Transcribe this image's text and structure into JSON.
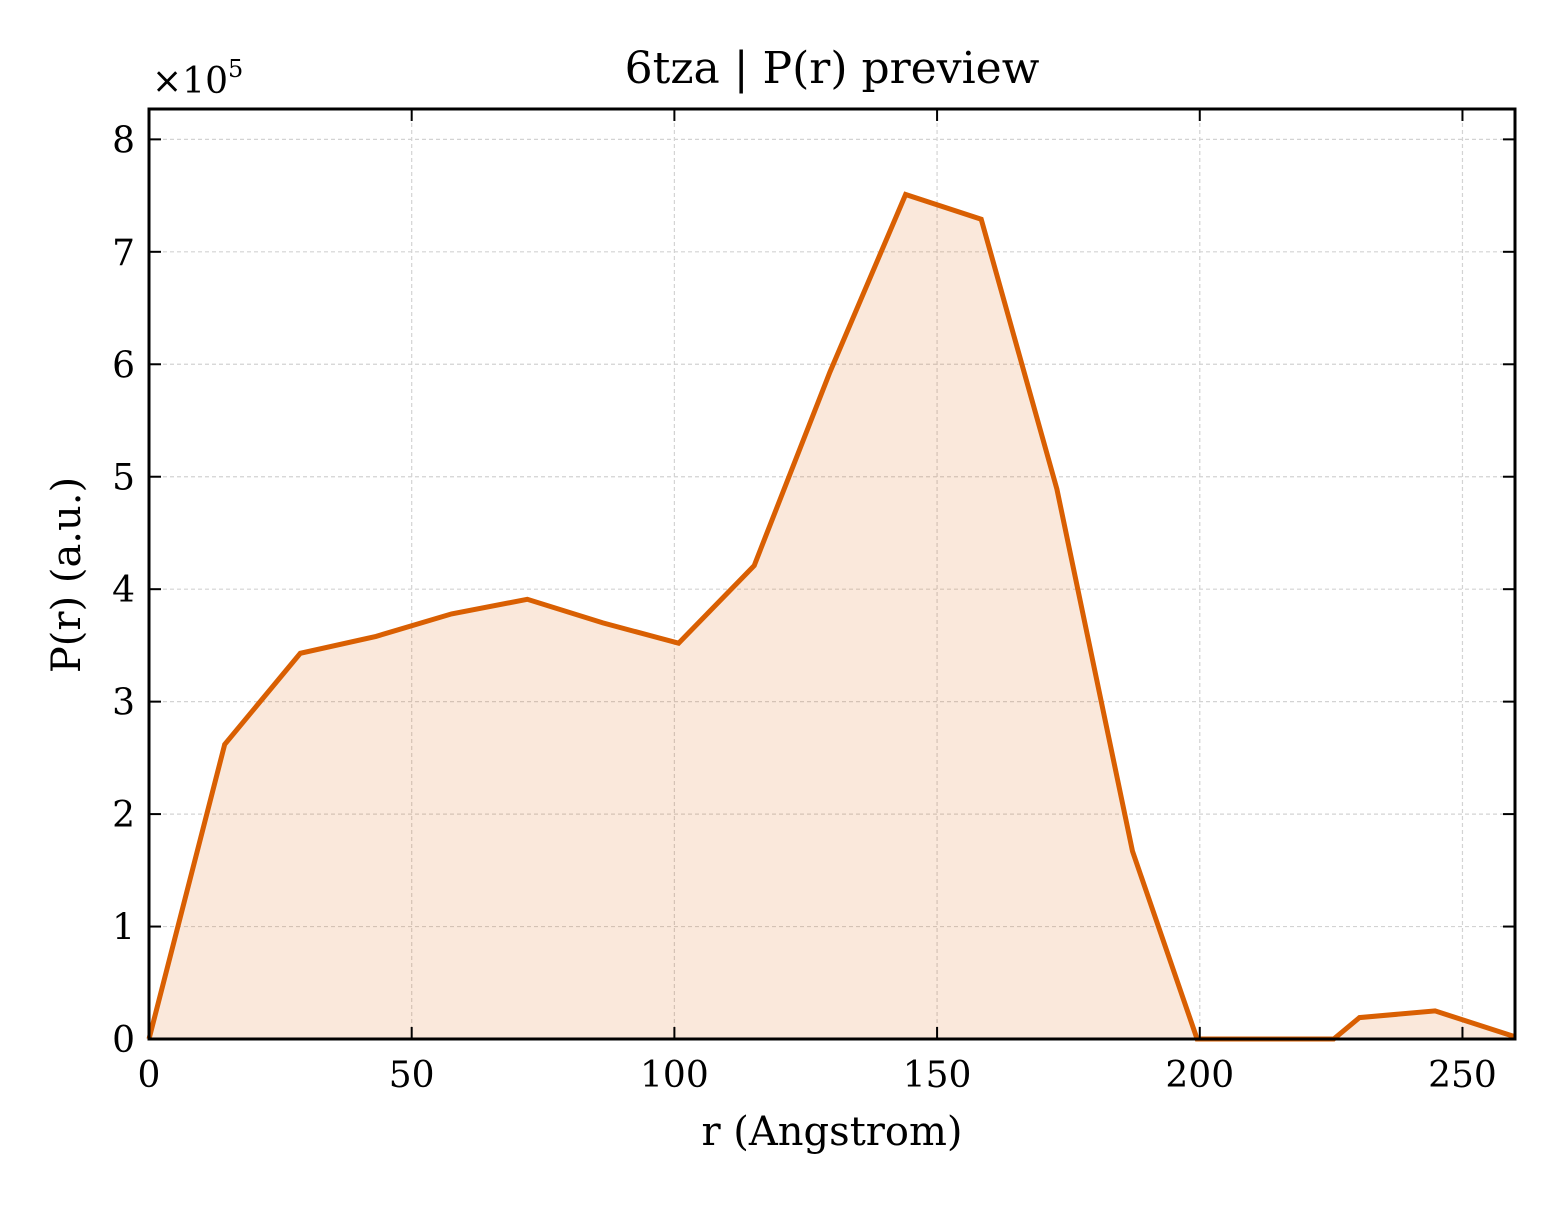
{
  "chart_data": {
    "type": "area",
    "title": "6tza | P(r) preview",
    "xlabel": "r (Angstrom)",
    "ylabel": "P(r) (a.u.)",
    "y_scale_label": "×10",
    "y_scale_exponent": "5",
    "xlim": [
      0,
      260
    ],
    "ylim": [
      0,
      8.27
    ],
    "x_ticks": [
      0,
      50,
      100,
      150,
      200,
      250
    ],
    "x_tick_labels": [
      "0",
      "50",
      "100",
      "150",
      "200",
      "250"
    ],
    "y_ticks": [
      0,
      1,
      2,
      3,
      4,
      5,
      6,
      7,
      8
    ],
    "y_tick_labels": [
      "0",
      "1",
      "2",
      "3",
      "4",
      "5",
      "6",
      "7",
      "8"
    ],
    "grid": true,
    "series": [
      {
        "x": [
          0,
          14.4,
          28.8,
          43.2,
          57.6,
          72.0,
          86.4,
          100.8,
          115.2,
          129.6,
          144.0,
          158.4,
          172.8,
          187.2,
          199.5,
          225.5,
          230.4,
          244.8,
          260
        ],
        "y": [
          0,
          2.62,
          3.43,
          3.58,
          3.78,
          3.91,
          3.7,
          3.52,
          4.21,
          5.93,
          7.51,
          7.29,
          4.89,
          1.67,
          0,
          0,
          0.19,
          0.25,
          0.02
        ],
        "color": "#d95f02",
        "fill": "#d95f02",
        "fill_opacity": 0.14
      }
    ]
  }
}
